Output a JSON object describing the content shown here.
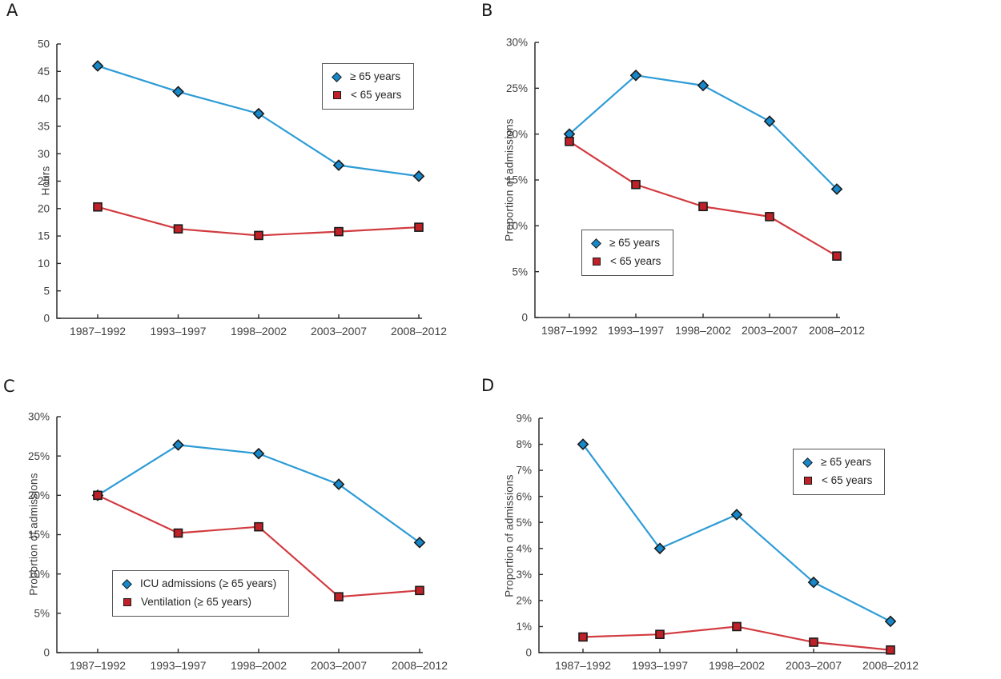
{
  "figure": {
    "background": "#ffffff",
    "axis_color": "#2b2b2b",
    "tick_text_color": "#414042",
    "marker_outline": "#1a1a1a"
  },
  "chart_data": [
    {
      "id": "A",
      "panel_label": "A",
      "type": "line",
      "title": "",
      "xlabel": "",
      "ylabel": "Hours",
      "ylim": [
        0,
        50
      ],
      "ytick_step": 5,
      "ytick_suffix": "",
      "grid": false,
      "legend_position": "top-right",
      "categories": [
        "1987–1992",
        "1993–1997",
        "1998–2002",
        "2003–2007",
        "2008–2012"
      ],
      "series": [
        {
          "name": "≥ 65 years",
          "marker": "diamond",
          "line_color": "#2E9CD6",
          "fill_color": "#1688C9",
          "values": [
            46,
            41.3,
            37.3,
            27.9,
            25.9
          ]
        },
        {
          "name": "< 65 years",
          "marker": "square",
          "line_color": "#D23B40",
          "fill_color": "#BE2127",
          "values": [
            20.3,
            16.3,
            15.1,
            15.8,
            16.6
          ]
        }
      ]
    },
    {
      "id": "B",
      "panel_label": "B",
      "type": "line",
      "title": "",
      "xlabel": "",
      "ylabel": "Proportion of admissions",
      "ylim": [
        0,
        30
      ],
      "ytick_step": 5,
      "ytick_suffix": "%",
      "grid": false,
      "legend_position": "bottom-left",
      "categories": [
        "1987–1992",
        "1993–1997",
        "1998–2002",
        "2003–2007",
        "2008–2012"
      ],
      "series": [
        {
          "name": "≥ 65 years",
          "marker": "diamond",
          "line_color": "#2E9CD6",
          "fill_color": "#1688C9",
          "values": [
            20,
            26.4,
            25.3,
            21.4,
            14
          ]
        },
        {
          "name": "< 65 years",
          "marker": "square",
          "line_color": "#D23B40",
          "fill_color": "#BE2127",
          "values": [
            19.2,
            14.5,
            12.1,
            11,
            6.7
          ]
        }
      ]
    },
    {
      "id": "C",
      "panel_label": "C",
      "type": "line",
      "title": "",
      "xlabel": "",
      "ylabel": "Proportion of admissions",
      "ylim": [
        0,
        30
      ],
      "ytick_step": 5,
      "ytick_suffix": "%",
      "grid": false,
      "legend_position": "bottom-left",
      "categories": [
        "1987–1992",
        "1993–1997",
        "1998–2002",
        "2003–2007",
        "2008–2012"
      ],
      "series": [
        {
          "name": "ICU admissions (≥ 65 years)",
          "marker": "diamond",
          "line_color": "#2E9CD6",
          "fill_color": "#1688C9",
          "values": [
            20,
            26.4,
            25.3,
            21.4,
            14
          ]
        },
        {
          "name": "Ventilation (≥ 65 years)",
          "marker": "square",
          "line_color": "#D23B40",
          "fill_color": "#BE2127",
          "values": [
            20,
            15.2,
            16,
            7.1,
            7.9
          ]
        }
      ]
    },
    {
      "id": "D",
      "panel_label": "D",
      "type": "line",
      "title": "",
      "xlabel": "",
      "ylabel": "Proportion of admissions",
      "ylim": [
        0,
        9
      ],
      "ytick_step": 1,
      "ytick_suffix": "%",
      "grid": false,
      "legend_position": "top-right",
      "categories": [
        "1987–1992",
        "1993–1997",
        "1998–2002",
        "2003–2007",
        "2008–2012"
      ],
      "series": [
        {
          "name": "≥ 65 years",
          "marker": "diamond",
          "line_color": "#2E9CD6",
          "fill_color": "#1688C9",
          "values": [
            8,
            4,
            5.3,
            2.7,
            1.2
          ]
        },
        {
          "name": "< 65 years",
          "marker": "square",
          "line_color": "#D23B40",
          "fill_color": "#BE2127",
          "values": [
            0.6,
            0.7,
            1,
            0.4,
            0.1
          ]
        }
      ]
    }
  ]
}
